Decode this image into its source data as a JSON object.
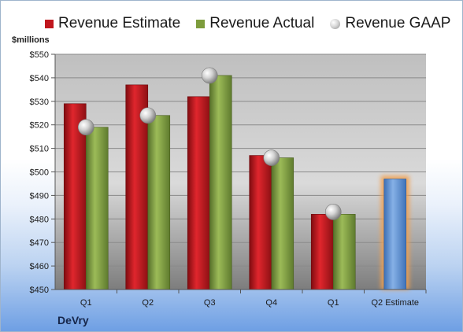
{
  "legend": {
    "items": [
      {
        "label": "Revenue Estimate",
        "color": "#c0161d",
        "marker": "square"
      },
      {
        "label": "Revenue Actual",
        "color": "#7d9c3c",
        "marker": "square"
      },
      {
        "label": "Revenue GAAP",
        "color": "#a8a8a8",
        "marker": "ball"
      }
    ]
  },
  "unit_label": "$millions",
  "company": "DeVry",
  "colors": {
    "estimate": "#c0161d",
    "actual": "#7d9c3c",
    "projected_estimate": "#5b8ed1",
    "highlight_glow": "#f2a050"
  },
  "chart_data": {
    "type": "bar",
    "categories": [
      "Q1",
      "Q2",
      "Q3",
      "Q4",
      "Q1",
      "Q2 Estimate"
    ],
    "series": [
      {
        "name": "Revenue Estimate",
        "values": [
          529,
          537,
          532,
          507,
          482,
          497
        ]
      },
      {
        "name": "Revenue Actual",
        "values": [
          519,
          524,
          541,
          506,
          482,
          null
        ]
      },
      {
        "name": "Revenue GAAP",
        "values": [
          519,
          524,
          541,
          506,
          483,
          null
        ]
      }
    ],
    "ylim": [
      450,
      550
    ],
    "ytick_step": 10,
    "ytick_prefix": "$",
    "ylabel": "$millions",
    "xlabel": "",
    "grid": true,
    "legend_position": "top"
  }
}
